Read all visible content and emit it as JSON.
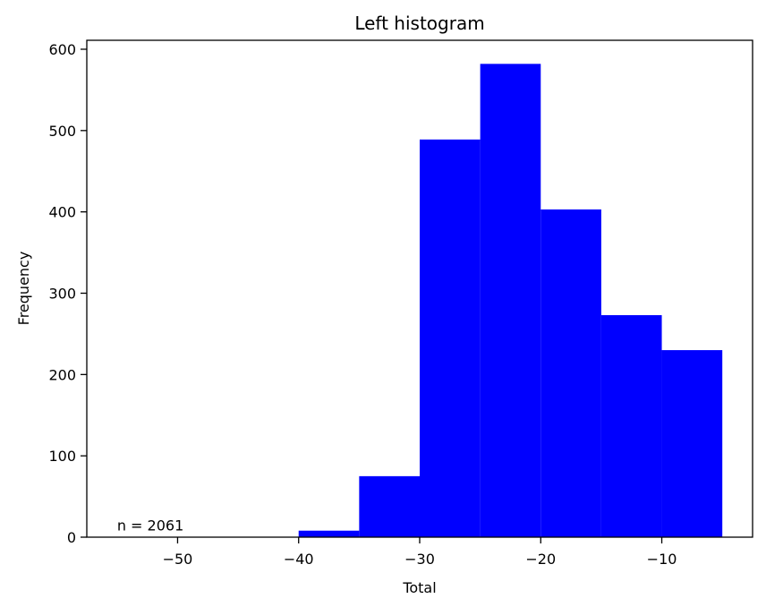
{
  "chart_data": {
    "type": "bar",
    "title": "Left histogram",
    "xlabel": "Total",
    "ylabel": "Frequency",
    "bar_color": "#0000ff",
    "bins": [
      {
        "x0": -55,
        "x1": -50,
        "value": 0
      },
      {
        "x0": -50,
        "x1": -45,
        "value": 0
      },
      {
        "x0": -45,
        "x1": -40,
        "value": 0
      },
      {
        "x0": -40,
        "x1": -35,
        "value": 8
      },
      {
        "x0": -35,
        "x1": -30,
        "value": 75
      },
      {
        "x0": -30,
        "x1": -25,
        "value": 489
      },
      {
        "x0": -25,
        "x1": -20,
        "value": 582
      },
      {
        "x0": -20,
        "x1": -15,
        "value": 403
      },
      {
        "x0": -15,
        "x1": -10,
        "value": 273
      },
      {
        "x0": -10,
        "x1": -5,
        "value": 230
      }
    ],
    "xlim": [
      -57.5,
      -2.5
    ],
    "ylim": [
      0,
      611
    ],
    "xticks": [
      -50,
      -40,
      -30,
      -20,
      -10
    ],
    "xtick_labels": [
      "−50",
      "−40",
      "−30",
      "−20",
      "−10"
    ],
    "yticks": [
      0,
      100,
      200,
      300,
      400,
      500,
      600
    ],
    "ytick_labels": [
      "0",
      "100",
      "200",
      "300",
      "400",
      "500",
      "600"
    ],
    "annotation": {
      "text": "n = 2061",
      "x": -55,
      "y": 8
    },
    "grid": false,
    "legend": "none"
  }
}
